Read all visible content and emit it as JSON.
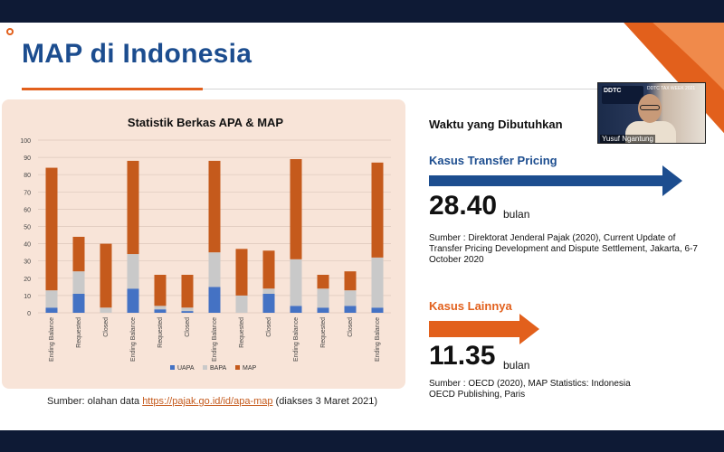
{
  "slide": {
    "title": "MAP di Indonesia"
  },
  "chart_data": {
    "type": "bar",
    "stacked": true,
    "title": "Statistik Berkas APA & MAP",
    "categories": [
      "Ending Balance",
      "Requested",
      "Closed",
      "Ending Balance",
      "Requested",
      "Closed",
      "Ending Balance",
      "Requested",
      "Closed",
      "Ending Balance",
      "Requested",
      "Closed",
      "Ending Balance"
    ],
    "series": [
      {
        "name": "UAPA",
        "color": "#4472c4",
        "values": [
          3,
          11,
          0,
          14,
          2,
          1,
          15,
          0,
          11,
          4,
          3,
          4,
          3
        ]
      },
      {
        "name": "BAPA",
        "color": "#c9c9c9",
        "values": [
          10,
          13,
          3,
          20,
          2,
          2,
          20,
          10,
          3,
          27,
          11,
          9,
          29
        ]
      },
      {
        "name": "MAP",
        "color": "#c55a1c",
        "values": [
          71,
          20,
          37,
          54,
          18,
          19,
          53,
          27,
          22,
          58,
          8,
          11,
          55
        ]
      }
    ],
    "ylim": [
      0,
      100
    ],
    "yticks": [
      "0",
      "10",
      "20",
      "30",
      "40",
      "50",
      "60",
      "70",
      "80",
      "90",
      "100"
    ],
    "grid": true,
    "legend": "bottom"
  },
  "source_note": {
    "prefix": "Sumber: olahan data ",
    "link": "https://pajak.go.id/id/apa-map",
    "suffix": " (diakses 3 Maret 2021)"
  },
  "right_panel": {
    "heading": "Waktu yang Dibutuhkan",
    "transfer_pricing": {
      "label": "Kasus Transfer Pricing",
      "value": "28.40",
      "unit": "bulan",
      "source": "Sumber : Direktorat Jenderal Pajak (2020), Current Update of Transfer Pricing Development and Dispute Settlement, Jakarta, 6-7 October 2020"
    },
    "other": {
      "label": "Kasus Lainnya",
      "value": "11.35",
      "unit": "bulan",
      "source_line1": "Sumber : OECD (2020), MAP Statistics: Indonesia",
      "source_line2": "OECD Publishing, Paris"
    }
  },
  "video": {
    "participant_name": "Yusuf Ngantung",
    "banner_logo": "DDTC",
    "banner_text": "DDTC TAX WEEK 2021"
  }
}
